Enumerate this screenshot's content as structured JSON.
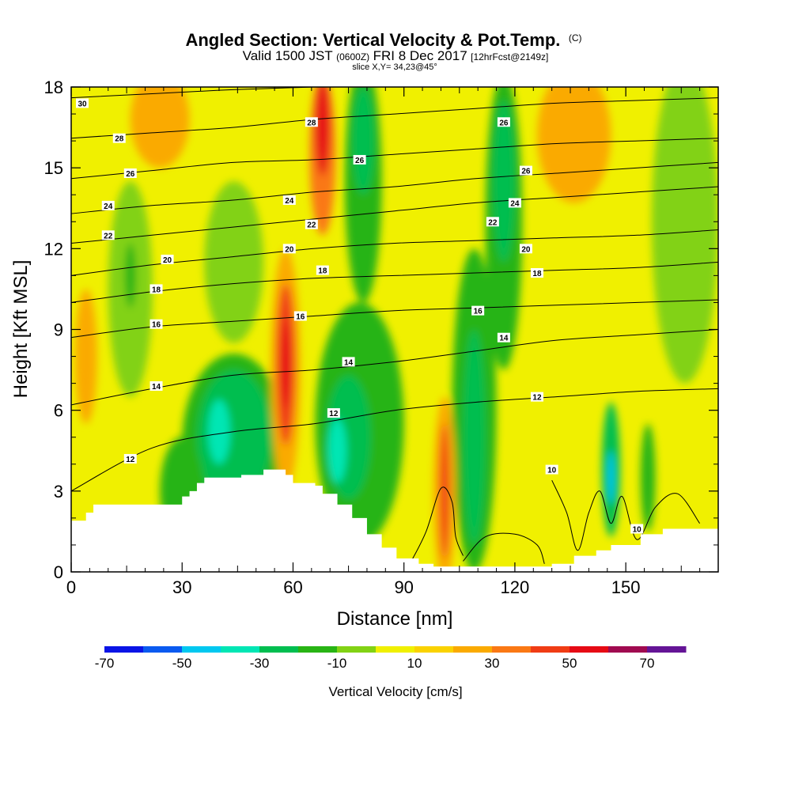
{
  "chart_data": {
    "type": "heatmap",
    "title": "Angled Section: Vertical Velocity & Pot.Temp.",
    "title_unit": "(C)",
    "subtitle_parts": [
      "Valid 1500 JST",
      "(0600Z)",
      "FRI 8 Dec 2017",
      "[12hrFcst@2149z]"
    ],
    "slice_label": "slice X,Y= 34,23@45°",
    "xlabel": "Distance [nm]",
    "ylabel": "Height [Kft MSL]",
    "xlim": [
      0,
      175
    ],
    "ylim": [
      0,
      18
    ],
    "x_ticks": [
      0,
      30,
      60,
      90,
      120,
      150
    ],
    "y_ticks": [
      0,
      3,
      6,
      9,
      12,
      15,
      18
    ],
    "colorbar": {
      "title": "Vertical Velocity [cm/s]",
      "range": [
        -70,
        80
      ],
      "tick_labels": [
        "-70",
        "-50",
        "-30",
        "-10",
        "10",
        "30",
        "50",
        "70"
      ],
      "colors": [
        "#0a14e6",
        "#0a5af0",
        "#00c8f0",
        "#00e6b4",
        "#00be50",
        "#28b414",
        "#82d214",
        "#f0f000",
        "#fad200",
        "#faaa00",
        "#fa7814",
        "#f03c14",
        "#e60a14",
        "#a00a50",
        "#641496"
      ]
    },
    "terrain_kft": [
      [
        0,
        1.9
      ],
      [
        4,
        2.2
      ],
      [
        6,
        2.5
      ],
      [
        30,
        2.8
      ],
      [
        32,
        3.0
      ],
      [
        34,
        3.3
      ],
      [
        36,
        3.5
      ],
      [
        46,
        3.6
      ],
      [
        52,
        3.8
      ],
      [
        58,
        3.6
      ],
      [
        60,
        3.3
      ],
      [
        66,
        3.2
      ],
      [
        68,
        2.9
      ],
      [
        72,
        2.5
      ],
      [
        76,
        2.0
      ],
      [
        80,
        1.4
      ],
      [
        84,
        0.9
      ],
      [
        88,
        0.5
      ],
      [
        94,
        0.3
      ],
      [
        98,
        0.2
      ],
      [
        130,
        0.3
      ],
      [
        136,
        0.6
      ],
      [
        142,
        0.8
      ],
      [
        146,
        1.0
      ],
      [
        154,
        1.4
      ],
      [
        160,
        1.6
      ],
      [
        175,
        1.7
      ]
    ],
    "vertical_velocity_cells": [
      {
        "x": 68,
        "z": 16.5,
        "rx": 2,
        "rz": 1.8,
        "value": 50
      },
      {
        "x": 68,
        "z": 15.5,
        "rx": 3.5,
        "rz": 3,
        "value": 30
      },
      {
        "x": 58,
        "z": 7.7,
        "rx": 1.2,
        "rz": 1.6,
        "value": 55
      },
      {
        "x": 58,
        "z": 7.7,
        "rx": 2.5,
        "rz": 3,
        "value": 40
      },
      {
        "x": 58,
        "z": 7.5,
        "rx": 4,
        "rz": 4.5,
        "value": 25
      },
      {
        "x": 101,
        "z": 3.0,
        "rx": 1.3,
        "rz": 2.5,
        "value": 40
      },
      {
        "x": 101,
        "z": 3.0,
        "rx": 3,
        "rz": 3.5,
        "value": 25
      },
      {
        "x": 24,
        "z": 16.8,
        "rx": 8,
        "rz": 1.8,
        "value": 25
      },
      {
        "x": 136,
        "z": 16.2,
        "rx": 10,
        "rz": 2.5,
        "value": 22
      },
      {
        "x": 4,
        "z": 8.0,
        "rx": 3,
        "rz": 2.5,
        "value": 22
      },
      {
        "x": 40,
        "z": 5.2,
        "rx": 3,
        "rz": 1.2,
        "value": -35
      },
      {
        "x": 44,
        "z": 5.0,
        "rx": 10,
        "rz": 2.5,
        "value": -25
      },
      {
        "x": 44,
        "z": 4.8,
        "rx": 14,
        "rz": 3.3,
        "value": -12
      },
      {
        "x": 72,
        "z": 4.5,
        "rx": 2.5,
        "rz": 1.2,
        "value": -38
      },
      {
        "x": 75,
        "z": 5.0,
        "rx": 6,
        "rz": 2.3,
        "value": -22
      },
      {
        "x": 78,
        "z": 5.5,
        "rx": 12,
        "rz": 4.5,
        "value": -12
      },
      {
        "x": 79,
        "z": 16.0,
        "rx": 3,
        "rz": 2,
        "value": -28
      },
      {
        "x": 79,
        "z": 14.5,
        "rx": 5,
        "rz": 4.5,
        "value": -15
      },
      {
        "x": 117,
        "z": 14.5,
        "rx": 3,
        "rz": 3,
        "value": -22
      },
      {
        "x": 117,
        "z": 13.0,
        "rx": 5,
        "rz": 5.5,
        "value": -12
      },
      {
        "x": 109,
        "z": 5.0,
        "rx": 3,
        "rz": 4,
        "value": -22
      },
      {
        "x": 109,
        "z": 6.0,
        "rx": 6,
        "rz": 6,
        "value": -12
      },
      {
        "x": 146,
        "z": 3.5,
        "rx": 1,
        "rz": 1,
        "value": -42
      },
      {
        "x": 146,
        "z": 3.8,
        "rx": 2.5,
        "rz": 2.5,
        "value": -22
      },
      {
        "x": 156,
        "z": 3.5,
        "rx": 2,
        "rz": 2,
        "value": -18
      },
      {
        "x": 16,
        "z": 11.0,
        "rx": 1.5,
        "rz": 1.2,
        "value": -18
      },
      {
        "x": 16,
        "z": 10.5,
        "rx": 6,
        "rz": 4,
        "value": -8
      },
      {
        "x": 166,
        "z": 13.0,
        "rx": 9,
        "rz": 6,
        "value": -8
      },
      {
        "x": 44,
        "z": 11.5,
        "rx": 8,
        "rz": 3,
        "value": -6
      },
      {
        "x": 30,
        "z": 3.0,
        "rx": 6,
        "rz": 2,
        "value": -12
      }
    ],
    "theta_contours": [
      {
        "value": 30,
        "z": [
          17.6,
          17.75,
          17.9,
          18.0,
          18.1,
          18.2,
          18.3,
          18.3,
          18.3
        ]
      },
      {
        "value": 28,
        "z": [
          16.1,
          16.3,
          16.5,
          16.8,
          17.0,
          17.2,
          17.4,
          17.5,
          17.6
        ]
      },
      {
        "value": 26,
        "z": [
          14.6,
          14.9,
          15.2,
          15.3,
          15.5,
          15.7,
          15.9,
          16.0,
          16.1
        ]
      },
      {
        "value": 24,
        "z": [
          13.3,
          13.6,
          13.8,
          14.1,
          14.3,
          14.6,
          14.8,
          15.0,
          15.2
        ]
      },
      {
        "value": 22,
        "z": [
          12.2,
          12.5,
          12.8,
          13.1,
          13.4,
          13.7,
          13.9,
          14.1,
          14.3
        ]
      },
      {
        "value": 20,
        "z": [
          11.0,
          11.4,
          11.7,
          12.0,
          12.2,
          12.3,
          12.4,
          12.5,
          12.7
        ]
      },
      {
        "value": 18,
        "z": [
          10.0,
          10.4,
          10.7,
          10.9,
          11.0,
          11.1,
          11.2,
          11.3,
          11.5
        ]
      },
      {
        "value": 16,
        "z": [
          8.7,
          9.1,
          9.3,
          9.5,
          9.7,
          9.8,
          9.9,
          10.0,
          10.1
        ]
      },
      {
        "value": 14,
        "z": [
          6.2,
          6.8,
          7.3,
          7.5,
          7.8,
          8.2,
          8.6,
          8.8,
          9.0
        ]
      },
      {
        "value": 12,
        "z": [
          3.0,
          4.6,
          5.2,
          5.5,
          6.0,
          6.3,
          6.5,
          6.7,
          6.8
        ]
      }
    ],
    "contour_labels": [
      {
        "text": "30",
        "x": 3,
        "z": 17.4
      },
      {
        "text": "28",
        "x": 13,
        "z": 16.1
      },
      {
        "text": "26",
        "x": 16,
        "z": 14.8
      },
      {
        "text": "24",
        "x": 10,
        "z": 13.6
      },
      {
        "text": "22",
        "x": 10,
        "z": 12.5
      },
      {
        "text": "20",
        "x": 26,
        "z": 11.6
      },
      {
        "text": "18",
        "x": 23,
        "z": 10.5
      },
      {
        "text": "16",
        "x": 23,
        "z": 9.2
      },
      {
        "text": "14",
        "x": 23,
        "z": 6.9
      },
      {
        "text": "12",
        "x": 16,
        "z": 4.2
      },
      {
        "text": "28",
        "x": 65,
        "z": 16.7
      },
      {
        "text": "26",
        "x": 78,
        "z": 15.3
      },
      {
        "text": "24",
        "x": 59,
        "z": 13.8
      },
      {
        "text": "22",
        "x": 65,
        "z": 12.9
      },
      {
        "text": "20",
        "x": 59,
        "z": 12.0
      },
      {
        "text": "18",
        "x": 68,
        "z": 11.2
      },
      {
        "text": "16",
        "x": 62,
        "z": 9.5
      },
      {
        "text": "14",
        "x": 75,
        "z": 7.8
      },
      {
        "text": "12",
        "x": 71,
        "z": 5.9
      },
      {
        "text": "26",
        "x": 117,
        "z": 16.7
      },
      {
        "text": "26",
        "x": 123,
        "z": 14.9
      },
      {
        "text": "24",
        "x": 120,
        "z": 13.7
      },
      {
        "text": "22",
        "x": 114,
        "z": 13.0
      },
      {
        "text": "20",
        "x": 123,
        "z": 12.0
      },
      {
        "text": "18",
        "x": 126,
        "z": 11.1
      },
      {
        "text": "16",
        "x": 110,
        "z": 9.7
      },
      {
        "text": "14",
        "x": 117,
        "z": 8.7
      },
      {
        "text": "12",
        "x": 126,
        "z": 6.5
      },
      {
        "text": "10",
        "x": 130,
        "z": 3.8
      },
      {
        "text": "10",
        "x": 153,
        "z": 1.6
      }
    ]
  }
}
